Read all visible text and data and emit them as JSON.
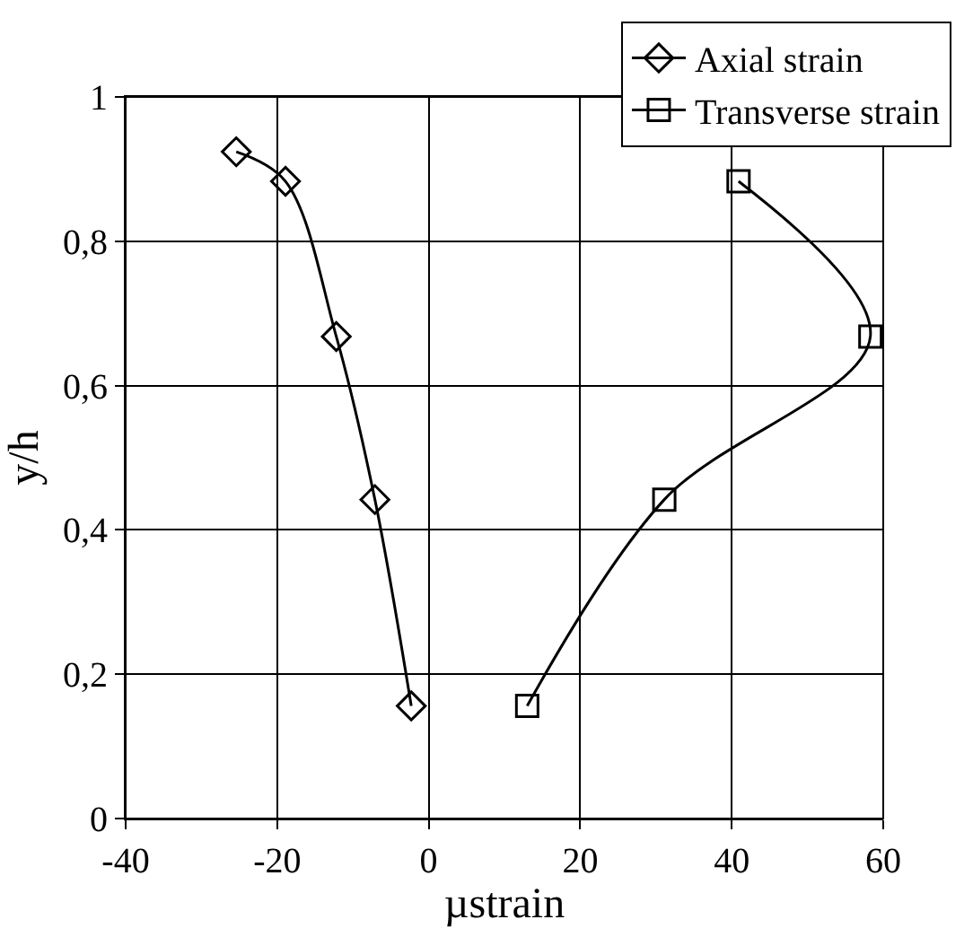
{
  "chart_data": {
    "type": "line",
    "xlabel": "µstrain",
    "ylabel": "y/h",
    "xlim": [
      -40,
      60
    ],
    "xticks": [
      -40,
      -20,
      0,
      20,
      40,
      60
    ],
    "ylim": [
      0,
      1
    ],
    "yticks": [
      0,
      {
        "value": 0.2,
        "label": "0,2"
      },
      {
        "value": 0.4,
        "label": "0,4"
      },
      {
        "value": 0.6,
        "label": "0,6"
      },
      {
        "value": 0.8,
        "label": "0,8"
      },
      1
    ],
    "grid": true,
    "legend": "top right",
    "line_style": "solid",
    "series": [
      {
        "name": "Axial strain",
        "color": "#000000",
        "marker": "diamond",
        "x": [
          -25.4,
          -18.9,
          -12.2,
          -7.1,
          -2.3
        ],
        "values": [
          0.924,
          0.883,
          0.668,
          0.442,
          0.156
        ]
      },
      {
        "name": "Transverse strain",
        "color": "#000000",
        "marker": "square",
        "x": [
          40.9,
          58.3,
          31.1,
          13.0
        ],
        "values": [
          0.883,
          0.668,
          0.442,
          0.156
        ]
      }
    ]
  }
}
